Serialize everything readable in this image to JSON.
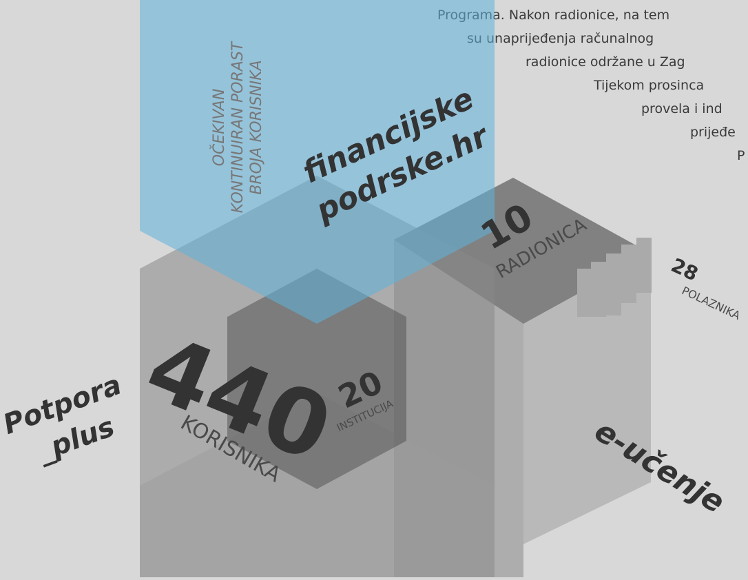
{
  "paragraph": {
    "lines": [
      "Programa. Nakon radionice, na tem",
      "su unaprijeđenja računalnog",
      "radionice održane u Zag",
      "Tijekom  prosinca",
      "provela  i  ind",
      "prijeđe",
      "P"
    ]
  },
  "growth_note": {
    "lines": [
      "OČEKIVAN",
      "KONTINUIRAN PORAST",
      "BROJA KORISNIKA"
    ]
  },
  "financijske": {
    "lines": [
      "financijske",
      "podrske.hr"
    ]
  },
  "potpora": {
    "lines": [
      "Potpora",
      "_plus"
    ],
    "users": {
      "value": "440",
      "label": "KORISNIKA"
    },
    "institutions": {
      "value": "20",
      "label": "INSTITUCIJA"
    }
  },
  "eucenje": {
    "title": "e-učenje",
    "workshops": {
      "value": "10",
      "label": "RADIONICA"
    },
    "participants": {
      "value": "28",
      "label": "POLAZNIKA"
    }
  }
}
